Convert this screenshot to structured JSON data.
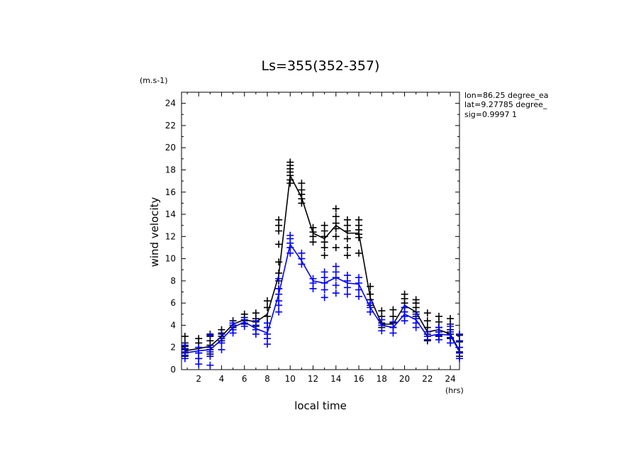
{
  "chart_data": {
    "type": "line",
    "title": "Ls=355(352-357)",
    "xlabel": "local time",
    "x_unit": "(hrs)",
    "ylabel": "wind velocity",
    "y_unit": "(m.s-1)",
    "annotations": [
      "lon=86.25 degree_ea",
      "lat=9.27785 degree_",
      "sig=0.9997 1"
    ],
    "xlim": [
      0.5,
      24.8
    ],
    "ylim": [
      0,
      25
    ],
    "xticks": [
      2,
      4,
      6,
      8,
      10,
      12,
      14,
      16,
      18,
      20,
      22,
      24
    ],
    "yticks": [
      0,
      2,
      4,
      6,
      8,
      10,
      12,
      14,
      16,
      18,
      20,
      22,
      24
    ],
    "grid": false,
    "series": [
      {
        "color": "#000000",
        "x": [
          0.8,
          2.0,
          3.0,
          4.0,
          5.0,
          6.0,
          7.0,
          8.0,
          9.0,
          10.0,
          11.0,
          12.0,
          13.0,
          14.0,
          15.0,
          16.0,
          17.0,
          18.0,
          19.0,
          20.0,
          21.0,
          22.0,
          23.0,
          24.0,
          24.8
        ],
        "values": [
          1.7,
          1.9,
          2.1,
          3.0,
          4.1,
          4.5,
          4.3,
          5.0,
          8.5,
          17.5,
          15.5,
          12.3,
          11.8,
          13.0,
          12.3,
          12.3,
          6.5,
          4.1,
          4.1,
          5.8,
          5.2,
          3.4,
          3.6,
          3.2,
          1.7
        ],
        "samples": [
          [
            0.8,
            [
              1.2,
              1.5,
              1.8,
              2.1,
              2.4,
              3.0
            ]
          ],
          [
            2.0,
            [
              1.0,
              1.5,
              2.0,
              2.4,
              2.8
            ]
          ],
          [
            3.0,
            [
              1.4,
              1.8,
              2.2,
              2.6,
              3.0,
              3.2
            ]
          ],
          [
            4.0,
            [
              2.6,
              3.0,
              3.3,
              3.6
            ]
          ],
          [
            5.0,
            [
              3.8,
              4.0,
              4.2,
              4.4
            ]
          ],
          [
            6.0,
            [
              4.1,
              4.4,
              4.7,
              5.0
            ]
          ],
          [
            7.0,
            [
              3.9,
              4.3,
              4.6,
              5.1
            ]
          ],
          [
            8.0,
            [
              4.2,
              4.8,
              5.6,
              6.2
            ]
          ],
          [
            9.0,
            [
              7.3,
              8.0,
              8.7,
              9.7,
              11.3,
              12.5,
              13.0,
              13.5
            ]
          ],
          [
            10.0,
            [
              16.8,
              17.1,
              17.5,
              17.8,
              18.1,
              18.4,
              18.7
            ]
          ],
          [
            11.0,
            [
              15.0,
              15.4,
              15.8,
              16.2,
              16.8
            ]
          ],
          [
            12.0,
            [
              11.5,
              12.0,
              12.4,
              12.8
            ]
          ],
          [
            13.0,
            [
              10.3,
              11.0,
              11.5,
              12.0,
              12.5,
              13.0
            ]
          ],
          [
            14.0,
            [
              11.0,
              12.0,
              12.7,
              13.2,
              13.8,
              14.5
            ]
          ],
          [
            15.0,
            [
              10.3,
              11.0,
              11.8,
              12.5,
              13.0,
              13.5
            ]
          ],
          [
            16.0,
            [
              10.5,
              11.9,
              12.2,
              12.6,
              13.0,
              13.5
            ]
          ],
          [
            17.0,
            [
              5.8,
              6.3,
              6.8,
              7.5
            ]
          ],
          [
            18.0,
            [
              3.8,
              4.2,
              4.8,
              5.3
            ]
          ],
          [
            19.0,
            [
              3.8,
              4.2,
              4.8,
              5.4
            ]
          ],
          [
            20.0,
            [
              5.2,
              5.6,
              6.0,
              6.4,
              6.8
            ]
          ],
          [
            21.0,
            [
              4.8,
              5.2,
              5.6,
              6.0,
              6.3
            ]
          ],
          [
            22.0,
            [
              2.6,
              3.2,
              3.8,
              4.4,
              5.1
            ]
          ],
          [
            23.0,
            [
              3.0,
              3.4,
              3.8,
              4.3,
              4.8
            ]
          ],
          [
            24.0,
            [
              2.8,
              3.2,
              3.6,
              4.1,
              4.6
            ]
          ],
          [
            24.8,
            [
              1.2,
              1.6,
              2.0,
              2.5,
              3.1
            ]
          ]
        ]
      },
      {
        "color": "#0000ff",
        "x": [
          0.8,
          2.0,
          3.0,
          4.0,
          5.0,
          6.0,
          7.0,
          8.0,
          9.0,
          10.0,
          11.0,
          12.0,
          13.0,
          14.0,
          15.0,
          16.0,
          17.0,
          18.0,
          19.0,
          20.0,
          21.0,
          22.0,
          23.0,
          24.0,
          24.8
        ],
        "values": [
          1.5,
          1.7,
          1.8,
          2.7,
          3.8,
          4.3,
          3.7,
          3.3,
          6.8,
          11.3,
          9.8,
          8.0,
          7.8,
          8.3,
          7.8,
          7.7,
          5.6,
          4.0,
          3.8,
          5.0,
          4.5,
          3.0,
          3.2,
          3.1,
          1.6
        ],
        "samples": [
          [
            0.8,
            [
              1.0,
              1.3,
              1.6,
              1.9,
              2.2
            ]
          ],
          [
            2.0,
            [
              0.5,
              1.0,
              1.5,
              2.0
            ]
          ],
          [
            3.0,
            [
              0.4,
              1.2,
              1.6,
              2.0,
              3.1
            ]
          ],
          [
            4.0,
            [
              1.8,
              2.4,
              2.8,
              3.2
            ]
          ],
          [
            5.0,
            [
              3.3,
              3.6,
              4.0,
              4.2
            ]
          ],
          [
            6.0,
            [
              3.9,
              4.2,
              4.5
            ]
          ],
          [
            7.0,
            [
              3.2,
              3.6,
              4.0,
              4.4
            ]
          ],
          [
            8.0,
            [
              2.3,
              2.8,
              3.2,
              3.8,
              4.2
            ]
          ],
          [
            9.0,
            [
              5.2,
              5.8,
              6.2,
              6.8,
              7.3,
              8.2
            ]
          ],
          [
            10.0,
            [
              10.5,
              11.0,
              11.4,
              11.8,
              12.1
            ]
          ],
          [
            11.0,
            [
              9.5,
              10.0,
              10.5
            ]
          ],
          [
            12.0,
            [
              7.3,
              7.8,
              8.2
            ]
          ],
          [
            13.0,
            [
              6.5,
              7.2,
              7.8,
              8.3,
              8.8
            ]
          ],
          [
            14.0,
            [
              6.9,
              7.6,
              8.3,
              8.8,
              9.3
            ]
          ],
          [
            15.0,
            [
              6.8,
              7.4,
              8.0,
              8.5
            ]
          ],
          [
            16.0,
            [
              6.6,
              7.2,
              7.8,
              8.3
            ]
          ],
          [
            17.0,
            [
              5.2,
              5.6,
              6.0
            ]
          ],
          [
            18.0,
            [
              3.5,
              4.0,
              4.5
            ]
          ],
          [
            19.0,
            [
              3.3,
              3.8,
              4.3
            ]
          ],
          [
            20.0,
            [
              4.4,
              4.8,
              5.2,
              5.6
            ]
          ],
          [
            21.0,
            [
              3.8,
              4.2,
              4.6,
              5.0
            ]
          ],
          [
            22.0,
            [
              2.7,
              3.0,
              3.4
            ]
          ],
          [
            23.0,
            [
              2.7,
              3.1,
              3.4,
              3.8
            ]
          ],
          [
            24.0,
            [
              2.4,
              2.9,
              3.4,
              3.9
            ]
          ],
          [
            24.8,
            [
              1.0,
              1.5,
              2.0,
              2.6,
              3.2
            ]
          ]
        ]
      }
    ]
  }
}
